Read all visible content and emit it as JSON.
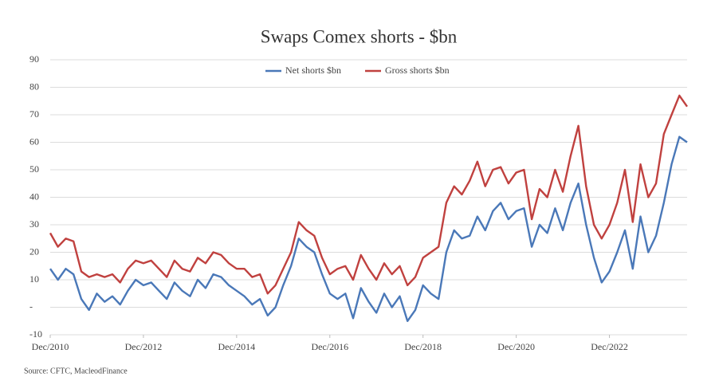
{
  "chart_data": {
    "type": "line",
    "title": "Swaps Comex shorts - $bn",
    "source": "Source: CFTC, MacleodFinance",
    "x": [
      "2010-12",
      "2011-02",
      "2011-04",
      "2011-06",
      "2011-08",
      "2011-10",
      "2011-12",
      "2012-02",
      "2012-04",
      "2012-06",
      "2012-08",
      "2012-10",
      "2012-12",
      "2013-02",
      "2013-04",
      "2013-06",
      "2013-08",
      "2013-10",
      "2013-12",
      "2014-02",
      "2014-04",
      "2014-06",
      "2014-08",
      "2014-10",
      "2014-12",
      "2015-02",
      "2015-04",
      "2015-06",
      "2015-08",
      "2015-10",
      "2015-12",
      "2016-02",
      "2016-04",
      "2016-06",
      "2016-08",
      "2016-10",
      "2016-12",
      "2017-02",
      "2017-04",
      "2017-06",
      "2017-08",
      "2017-10",
      "2017-12",
      "2018-02",
      "2018-04",
      "2018-06",
      "2018-08",
      "2018-10",
      "2018-12",
      "2019-02",
      "2019-04",
      "2019-06",
      "2019-08",
      "2019-10",
      "2019-12",
      "2020-02",
      "2020-04",
      "2020-06",
      "2020-08",
      "2020-10",
      "2020-12",
      "2021-02",
      "2021-04",
      "2021-06",
      "2021-08",
      "2021-10",
      "2021-12",
      "2022-02",
      "2022-04",
      "2022-06",
      "2022-08",
      "2022-10",
      "2022-12",
      "2023-02",
      "2023-04",
      "2023-06",
      "2023-08",
      "2023-10",
      "2023-12",
      "2024-02",
      "2024-04",
      "2024-06",
      "2024-08"
    ],
    "series": [
      {
        "name": "Net shorts $bn",
        "color": "#4a78b8",
        "values": [
          14,
          10,
          14,
          12,
          3,
          -1,
          5,
          2,
          4,
          1,
          6,
          10,
          8,
          9,
          6,
          3,
          9,
          6,
          4,
          10,
          7,
          12,
          11,
          8,
          6,
          4,
          1,
          3,
          -3,
          0,
          8,
          15,
          25,
          22,
          20,
          12,
          5,
          3,
          5,
          -4,
          7,
          2,
          -2,
          5,
          0,
          4,
          -5,
          -1,
          8,
          5,
          3,
          20,
          28,
          25,
          26,
          33,
          28,
          35,
          38,
          32,
          35,
          36,
          22,
          30,
          27,
          36,
          28,
          38,
          45,
          30,
          18,
          9,
          13,
          20,
          28,
          14,
          33,
          20,
          26,
          38,
          52,
          62,
          60
        ]
      },
      {
        "name": "Gross shorts $bn",
        "color": "#c0413f",
        "values": [
          27,
          22,
          25,
          24,
          13,
          11,
          12,
          11,
          12,
          9,
          14,
          17,
          16,
          17,
          14,
          11,
          17,
          14,
          13,
          18,
          16,
          20,
          19,
          16,
          14,
          14,
          11,
          12,
          5,
          8,
          14,
          20,
          31,
          28,
          26,
          18,
          12,
          14,
          15,
          10,
          19,
          14,
          10,
          16,
          12,
          15,
          8,
          11,
          18,
          20,
          22,
          38,
          44,
          41,
          46,
          53,
          44,
          50,
          51,
          45,
          49,
          50,
          32,
          43,
          40,
          50,
          42,
          55,
          66,
          44,
          30,
          25,
          30,
          38,
          50,
          31,
          52,
          40,
          45,
          63,
          70,
          77,
          73
        ]
      }
    ],
    "xlim": [
      "2010-12",
      "2024-08"
    ],
    "xticks": [
      {
        "value": "2010-12",
        "label": "Dec/2010"
      },
      {
        "value": "2012-12",
        "label": "Dec/2012"
      },
      {
        "value": "2014-12",
        "label": "Dec/2014"
      },
      {
        "value": "2016-12",
        "label": "Dec/2016"
      },
      {
        "value": "2018-12",
        "label": "Dec/2018"
      },
      {
        "value": "2020-12",
        "label": "Dec/2020"
      },
      {
        "value": "2022-12",
        "label": "Dec/2022"
      }
    ],
    "ylim": [
      -10,
      90
    ],
    "yticks": [
      -10,
      {
        "value": 0,
        "label": "-"
      },
      10,
      20,
      30,
      40,
      50,
      60,
      70,
      80,
      90
    ],
    "grid": true,
    "legend": "top"
  }
}
